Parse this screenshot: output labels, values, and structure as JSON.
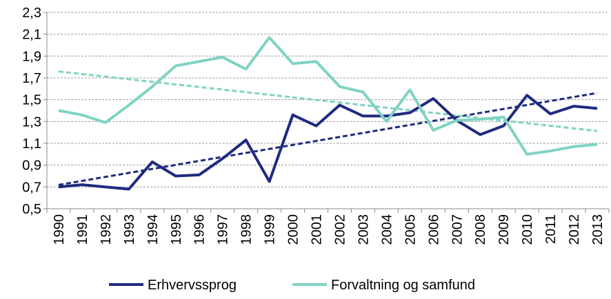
{
  "chart_data": {
    "type": "line",
    "categories": [
      "1990",
      "1991",
      "1992",
      "1993",
      "1994",
      "1995",
      "1996",
      "1997",
      "1998",
      "1999",
      "2000",
      "2001",
      "2002",
      "2003",
      "2004",
      "2005",
      "2006",
      "2007",
      "2008",
      "2009",
      "2010",
      "2011",
      "2012",
      "2013"
    ],
    "series": [
      {
        "name": "Erhvervssprog",
        "color": "#1f2a7f",
        "values": [
          0.7,
          0.72,
          0.7,
          0.68,
          0.93,
          0.8,
          0.81,
          0.96,
          1.13,
          0.75,
          1.36,
          1.26,
          1.45,
          1.35,
          1.35,
          1.38,
          1.51,
          1.31,
          1.18,
          1.26,
          1.54,
          1.37,
          1.44,
          1.42
        ]
      },
      {
        "name": "Forvaltning og samfund",
        "color": "#7fd3c2",
        "values": [
          1.4,
          1.36,
          1.29,
          1.45,
          1.62,
          1.81,
          1.85,
          1.89,
          1.78,
          2.07,
          1.83,
          1.85,
          1.62,
          1.57,
          1.3,
          1.59,
          1.22,
          1.31,
          1.32,
          1.34,
          1.0,
          1.03,
          1.07,
          1.09
        ]
      }
    ],
    "ylim": [
      0.5,
      2.3
    ],
    "yticks": [
      {
        "value": 0.5,
        "label": "0,5"
      },
      {
        "value": 0.7,
        "label": "0,7"
      },
      {
        "value": 0.9,
        "label": "0,9"
      },
      {
        "value": 1.1,
        "label": "1,1"
      },
      {
        "value": 1.3,
        "label": "1,3"
      },
      {
        "value": 1.5,
        "label": "1,5"
      },
      {
        "value": 1.7,
        "label": "1,7"
      },
      {
        "value": 1.9,
        "label": "1,9"
      },
      {
        "value": 2.1,
        "label": "2,1"
      },
      {
        "value": 2.3,
        "label": "2,3"
      }
    ],
    "grid": true,
    "trendlines": true,
    "legend": "bottom"
  }
}
